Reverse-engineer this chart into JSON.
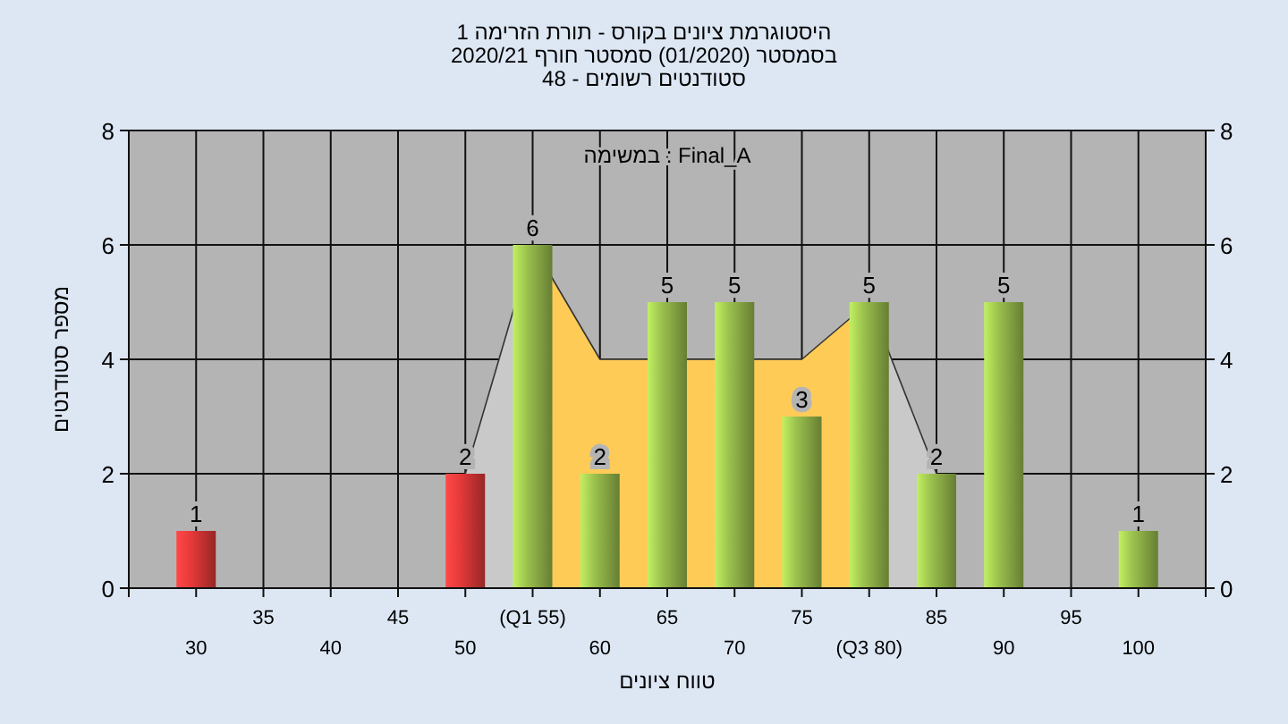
{
  "chart_data": {
    "type": "bar",
    "title": "היסטוגרמת ציונים בקורס - תורת הזרימה 1",
    "subtitle": "בסמסטר (01/2020) סמסטר חורף 2020/21\nסטודנטים רשומים - 48",
    "xlabel": "טווח ציונים",
    "ylabel": "מספר סטודנטים",
    "annotations": [
      "במשימה : Final_A"
    ],
    "categories": [
      "30",
      "35",
      "40",
      "45",
      "50",
      "(Q1 55)",
      "60",
      "65",
      "70",
      "75",
      "(Q3 80)",
      "85",
      "90",
      "95",
      "100"
    ],
    "series": [
      {
        "type": "area",
        "color": "#c9c9c9",
        "values": [
          null,
          null,
          null,
          null,
          2,
          6,
          null,
          null,
          null,
          null,
          null,
          null,
          null,
          null,
          null
        ]
      },
      {
        "type": "area",
        "color": "#c9c9c9",
        "values": [
          null,
          null,
          null,
          null,
          null,
          null,
          null,
          null,
          null,
          null,
          5,
          2,
          null,
          null,
          null
        ]
      },
      {
        "type": "area",
        "color": "#ffcb57",
        "values": [
          null,
          null,
          null,
          null,
          null,
          6,
          4,
          null,
          null,
          4,
          5,
          null,
          null,
          null,
          null
        ]
      },
      {
        "colors": [
          "#e83a3a",
          "#9cc24e",
          "#9cc24e",
          "#9cc24e",
          "#e83a3a",
          "#9cc24e",
          "#9cc24e",
          "#9cc24e",
          "#9cc24e",
          "#9cc24e",
          "#9cc24e",
          "#9cc24e",
          "#9cc24e",
          "#9cc24e",
          "#9cc24e"
        ],
        "values": [
          1,
          0,
          0,
          0,
          2,
          6,
          2,
          5,
          5,
          3,
          5,
          2,
          5,
          0,
          1
        ],
        "value_labels": [
          "1",
          null,
          null,
          null,
          "2",
          "6",
          "2",
          "5",
          "5",
          "3",
          "5",
          "2",
          "5",
          null,
          "1"
        ]
      }
    ],
    "ylim": [
      0,
      8
    ],
    "yticks": [
      0,
      2,
      4,
      6,
      8
    ],
    "y2lim": [
      0,
      8
    ],
    "y2ticks": [
      0,
      2,
      4,
      6,
      8
    ],
    "grid": true
  }
}
